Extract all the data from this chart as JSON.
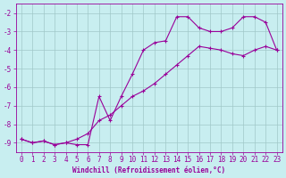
{
  "xlabel": "Windchill (Refroidissement éolien,°C)",
  "bg_color": "#c8eef0",
  "line_color": "#990099",
  "grid_color": "#a0c8c8",
  "x_line1": [
    0,
    1,
    2,
    3,
    4,
    5,
    6,
    7,
    8,
    9,
    10,
    11,
    12,
    13,
    14,
    15,
    16,
    17,
    18,
    19,
    20,
    21,
    22,
    23
  ],
  "y_line1": [
    -8.8,
    -9.0,
    -8.9,
    -9.1,
    -9.0,
    -9.1,
    -9.1,
    -6.5,
    -7.8,
    -6.5,
    -5.3,
    -4.0,
    -3.6,
    -3.5,
    -2.2,
    -2.2,
    -2.8,
    -3.0,
    -3.0,
    -2.8,
    -2.2,
    -2.2,
    -2.5,
    -4.0
  ],
  "x_line2": [
    0,
    1,
    2,
    3,
    4,
    5,
    6,
    7,
    8,
    9,
    10,
    11,
    12,
    13,
    14,
    15,
    16,
    17,
    18,
    19,
    20,
    21,
    22,
    23
  ],
  "y_line2": [
    -8.8,
    -9.0,
    -8.9,
    -9.1,
    -9.0,
    -8.8,
    -8.5,
    -7.8,
    -7.5,
    -7.0,
    -6.5,
    -6.2,
    -5.8,
    -5.3,
    -4.8,
    -4.3,
    -3.8,
    -3.9,
    -4.0,
    -4.2,
    -4.3,
    -4.0,
    -3.8,
    -4.0
  ],
  "xlim": [
    -0.5,
    23.5
  ],
  "ylim": [
    -9.5,
    -1.5
  ],
  "yticks": [
    -9,
    -8,
    -7,
    -6,
    -5,
    -4,
    -3,
    -2
  ],
  "xticks": [
    0,
    1,
    2,
    3,
    4,
    5,
    6,
    7,
    8,
    9,
    10,
    11,
    12,
    13,
    14,
    15,
    16,
    17,
    18,
    19,
    20,
    21,
    22,
    23
  ],
  "marker": "+",
  "linewidth": 0.8,
  "markersize": 3,
  "label_fontsize": 5.5,
  "tick_fontsize": 5.5
}
